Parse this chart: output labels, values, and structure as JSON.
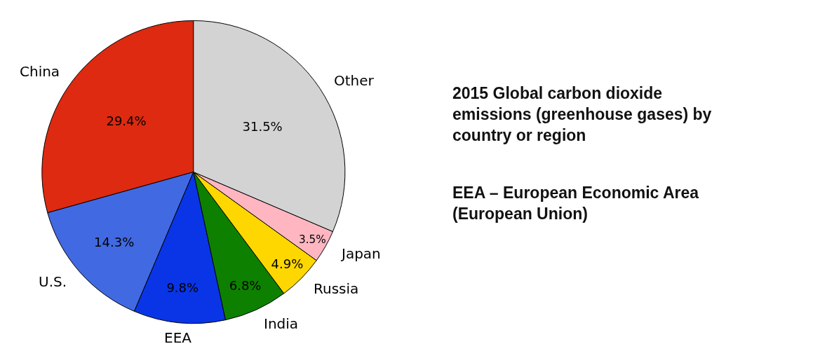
{
  "chart_data": {
    "type": "pie",
    "title": "2015 Global carbon dioxide emissions (greenhouse gases) by country or region",
    "annotations": [
      "EEA – European Economic Area (European Union)"
    ],
    "categories": [
      "China",
      "U.S.",
      "EEA",
      "India",
      "Russia",
      "Japan",
      "Other"
    ],
    "values": [
      29.4,
      14.3,
      9.8,
      6.8,
      4.9,
      3.5,
      31.5
    ],
    "value_labels": [
      "29.4%",
      "14.3%",
      "9.8%",
      "6.8%",
      "4.9%",
      "3.5%",
      "31.5%"
    ],
    "colors": [
      "#dd2a10",
      "#4169e1",
      "#0a35e6",
      "#0e8000",
      "#ffd700",
      "#ffb6c1",
      "#d3d3d3"
    ],
    "legend": false
  }
}
